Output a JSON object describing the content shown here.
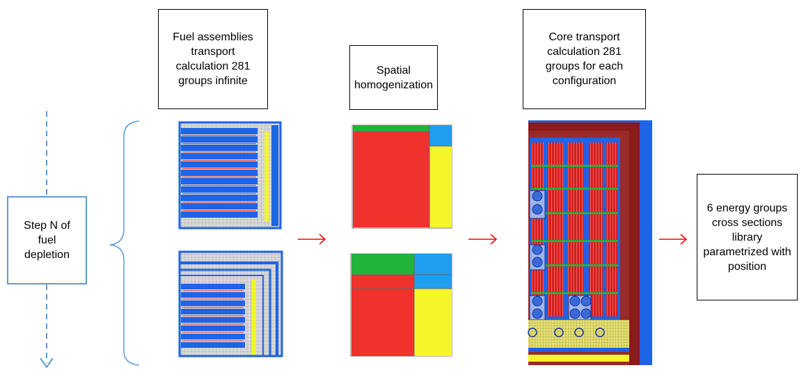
{
  "steps": {
    "fuel_assemblies": "Fuel assemblies transport calculation 281 groups infinite",
    "spatial_homogenization": "Spatial homogenization",
    "core_transport": "Core transport calculation 281 groups for each configuration",
    "output_library": "6 energy groups cross sections library parametrized with position"
  },
  "loop": {
    "label": "Step N of fuel depletion"
  },
  "colors": {
    "blue": "#1f63e6",
    "red": "#f0322d",
    "yellow": "#f5f52a",
    "green": "#22b33a",
    "cyan": "#1f9ef0",
    "darkred": "#8b1a1a",
    "gray": "#c8c8c8",
    "arrow": "#ff0000",
    "loop_blue": "#5b9bd5"
  }
}
